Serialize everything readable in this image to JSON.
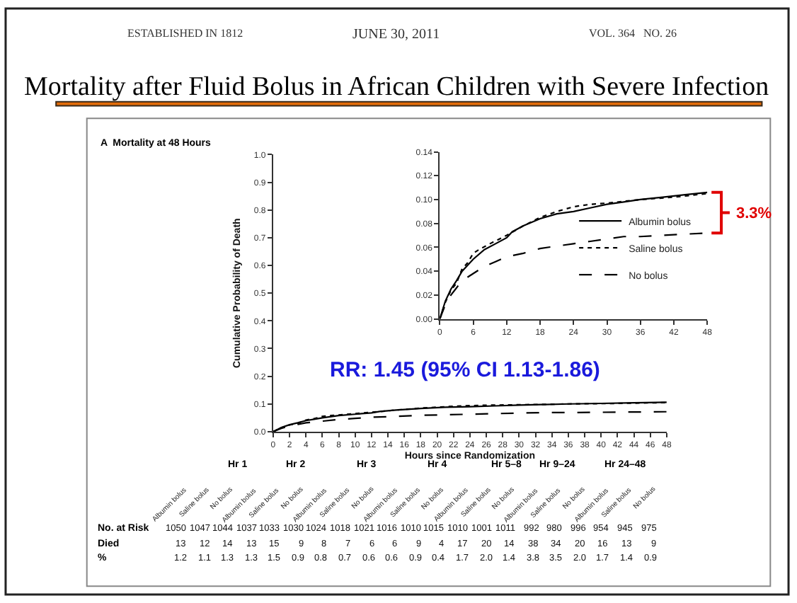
{
  "chart_data": [
    {
      "type": "line",
      "title": "Mortality after Fluid Bolus in African Children with Severe Infection",
      "subtitle": "A  Mortality at 48 Hours",
      "xlabel": "Hours since Randomization",
      "ylabel": "Cumulative Probability of Death",
      "annotations": [
        "ESTABLISHED IN 1812",
        "JUNE 30, 2011",
        "VOL. 364   NO. 26",
        "RR: 1.45 (95% CI 1.13-1.86)"
      ],
      "xlim": [
        0,
        48
      ],
      "xticks": [
        0,
        2,
        4,
        6,
        8,
        10,
        12,
        14,
        16,
        18,
        20,
        22,
        24,
        26,
        28,
        30,
        32,
        34,
        36,
        38,
        40,
        42,
        44,
        46,
        48
      ],
      "ylim": [
        0,
        1
      ],
      "yticks": [
        {
          "value": 0,
          "label": "0.0"
        },
        0.1,
        0.2,
        0.3,
        0.4,
        0.5,
        0.6,
        0.7,
        0.8,
        0.9,
        {
          "value": 1,
          "label": "1.0"
        }
      ],
      "grid": false,
      "legend": false,
      "series": [
        {
          "color": "#000000",
          "line_style": "solid",
          "x": [
            0,
            1,
            2,
            3,
            4,
            5,
            6,
            8,
            10,
            12,
            13,
            15,
            18,
            21,
            24,
            27,
            30,
            33,
            36,
            40,
            44,
            48
          ],
          "values": [
            0,
            0.015,
            0.025,
            0.032,
            0.04,
            0.045,
            0.05,
            0.058,
            0.063,
            0.068,
            0.073,
            0.078,
            0.084,
            0.088,
            0.09,
            0.093,
            0.096,
            0.098,
            0.1,
            0.102,
            0.104,
            0.106
          ]
        },
        {
          "color": "#000000",
          "line_style": "dotted",
          "x": [
            0,
            1,
            2,
            3,
            4,
            5,
            6,
            7,
            9,
            12,
            15,
            18,
            21,
            24,
            27,
            30,
            36,
            42,
            48
          ],
          "values": [
            0,
            0.014,
            0.024,
            0.03,
            0.042,
            0.047,
            0.055,
            0.058,
            0.063,
            0.07,
            0.078,
            0.085,
            0.09,
            0.094,
            0.096,
            0.097,
            0.1,
            0.102,
            0.105
          ]
        },
        {
          "color": "#000000",
          "line_style": "dashed",
          "x": [
            0,
            1,
            2,
            3,
            4,
            6,
            8,
            10,
            12,
            15,
            18,
            21,
            24,
            27,
            30,
            33,
            36,
            40,
            44,
            48
          ],
          "values": [
            0,
            0.012,
            0.02,
            0.026,
            0.032,
            0.038,
            0.044,
            0.048,
            0.052,
            0.055,
            0.059,
            0.061,
            0.063,
            0.065,
            0.067,
            0.069,
            0.069,
            0.07,
            0.071,
            0.072
          ]
        }
      ]
    },
    {
      "type": "line",
      "xlim": [
        0,
        48
      ],
      "xticks": [
        0,
        6,
        12,
        18,
        24,
        30,
        36,
        42,
        48
      ],
      "ylim": [
        0,
        0.14
      ],
      "yticks": [
        {
          "value": 0,
          "label": "0.00"
        },
        0.02,
        0.04,
        0.06,
        0.08,
        {
          "value": 0.1,
          "label": "0.10"
        },
        0.12,
        0.14
      ],
      "grid": false,
      "legend": "bottom right",
      "annotations": [
        "3.3%"
      ],
      "series": [
        {
          "name": "Albumin bolus",
          "color": "#000000",
          "line_style": "solid",
          "x": [
            0,
            1,
            2,
            3,
            4,
            5,
            6,
            8,
            10,
            12,
            13,
            15,
            18,
            21,
            24,
            27,
            30,
            33,
            36,
            40,
            44,
            48
          ],
          "values": [
            0,
            0.015,
            0.025,
            0.032,
            0.04,
            0.045,
            0.05,
            0.058,
            0.063,
            0.068,
            0.073,
            0.078,
            0.084,
            0.088,
            0.09,
            0.093,
            0.096,
            0.098,
            0.1,
            0.102,
            0.104,
            0.106
          ]
        },
        {
          "name": "Saline bolus",
          "color": "#000000",
          "line_style": "dotted",
          "x": [
            0,
            1,
            2,
            3,
            4,
            5,
            6,
            7,
            9,
            12,
            15,
            18,
            21,
            24,
            27,
            30,
            36,
            42,
            48
          ],
          "values": [
            0,
            0.014,
            0.024,
            0.03,
            0.042,
            0.047,
            0.055,
            0.058,
            0.063,
            0.07,
            0.078,
            0.085,
            0.09,
            0.094,
            0.096,
            0.097,
            0.1,
            0.102,
            0.105
          ]
        },
        {
          "name": "No bolus",
          "color": "#000000",
          "line_style": "dashed",
          "x": [
            0,
            1,
            2,
            3,
            4,
            6,
            8,
            10,
            12,
            15,
            18,
            21,
            24,
            27,
            30,
            33,
            36,
            40,
            44,
            48
          ],
          "values": [
            0,
            0.012,
            0.02,
            0.026,
            0.032,
            0.038,
            0.044,
            0.048,
            0.052,
            0.055,
            0.059,
            0.061,
            0.063,
            0.065,
            0.067,
            0.069,
            0.069,
            0.07,
            0.071,
            0.072
          ]
        }
      ]
    },
    {
      "type": "other",
      "annotations": [
        "Hr 1",
        "Hr 2",
        "Hr 3",
        "Hr 4",
        "Hr 5–8",
        "Hr 9–24",
        "Hr 24–48",
        "Albumin bolus",
        "Saline bolus",
        "No bolus",
        "Albumin bolus",
        "Saline bolus",
        "No bolus",
        "Albumin bolus",
        "Saline bolus",
        "No bolus",
        "Albumin bolus",
        "Saline bolus",
        "No bolus",
        "Albumin bolus",
        "Saline bolus",
        "No bolus",
        "Albumin bolus",
        "Saline bolus",
        "No bolus",
        "Albumin bolus",
        "Saline bolus",
        "No bolus",
        "No. at Risk",
        "1050",
        "1047",
        "1044",
        "1037",
        "1033",
        "1030",
        "1024",
        "1018",
        "1021",
        "1016",
        "1010",
        "1015",
        "1010",
        "1001",
        "1011",
        "992",
        "980",
        "996",
        "954",
        "945",
        "975",
        "Died",
        "13",
        "12",
        "14",
        "13",
        "15",
        "9",
        "8",
        "7",
        "6",
        "6",
        "9",
        "4",
        "17",
        "20",
        "14",
        "38",
        "34",
        "20",
        "16",
        "13",
        "9",
        "%",
        "1.2",
        "1.1",
        "1.3",
        "1.3",
        "1.5",
        "0.9",
        "0.8",
        "0.7",
        "0.6",
        "0.6",
        "0.9",
        "0.4",
        "1.7",
        "2.0",
        "1.4",
        "3.8",
        "3.5",
        "2.0",
        "1.7",
        "1.4",
        "0.9"
      ]
    }
  ]
}
